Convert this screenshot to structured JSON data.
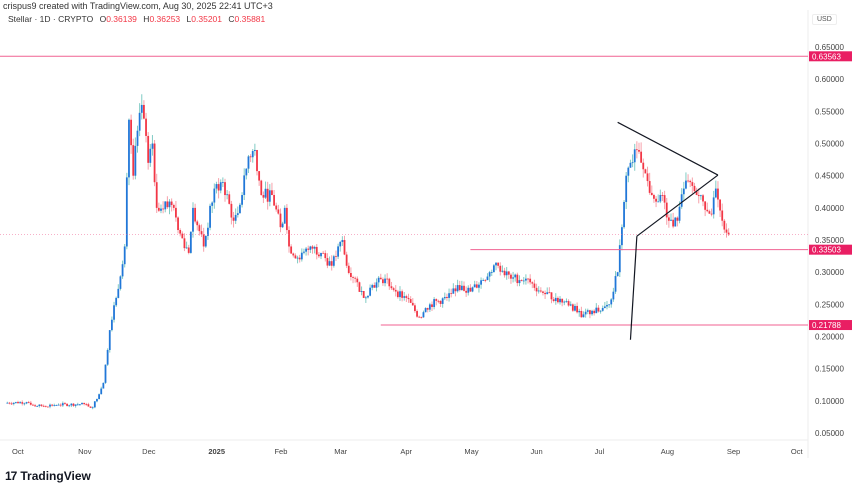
{
  "header": {
    "credit": "crispus9 created with TradingView.com, Aug 30, 2025 22:41 UTC+3",
    "symbol": "Stellar · 1D · CRYPTO",
    "ohlc": {
      "o_label": "O",
      "o": "0.36139",
      "h_label": "H",
      "h": "0.36253",
      "l_label": "L",
      "l": "0.35201",
      "c_label": "C",
      "c": "0.35881"
    }
  },
  "footer": {
    "brand": "TradingView",
    "brand_mark": "17"
  },
  "colors": {
    "up": "#2177d8",
    "up_wick": "#80cbc4",
    "down": "#f23645",
    "down_wick": "#f7a1aa",
    "level": "#f06292",
    "label_bg": "#e91e63",
    "trendline": "#131722"
  },
  "chart_data": {
    "type": "candlestick",
    "title": "Stellar · 1D · CRYPTO",
    "currency": "USD",
    "ylim": [
      0.02,
      0.68
    ],
    "y_ticks": [
      "0.65000",
      "0.60000",
      "0.55000",
      "0.50000",
      "0.45000",
      "0.40000",
      "0.35000",
      "0.30000",
      "0.25000",
      "0.20000",
      "0.15000",
      "0.10000",
      "0.05000"
    ],
    "x_ticks": [
      {
        "date": "2024-10-01",
        "label": "Oct"
      },
      {
        "date": "2024-11-01",
        "label": "Nov"
      },
      {
        "date": "2024-12-01",
        "label": "Dec"
      },
      {
        "date": "2025-01-01",
        "label": "2025",
        "bold": true
      },
      {
        "date": "2025-02-01",
        "label": "Feb"
      },
      {
        "date": "2025-03-01",
        "label": "Mar"
      },
      {
        "date": "2025-04-01",
        "label": "Apr"
      },
      {
        "date": "2025-05-01",
        "label": "May"
      },
      {
        "date": "2025-06-01",
        "label": "Jun"
      },
      {
        "date": "2025-07-01",
        "label": "Jul"
      },
      {
        "date": "2025-08-01",
        "label": "Aug"
      },
      {
        "date": "2025-09-01",
        "label": "Sep"
      },
      {
        "date": "2025-10-01",
        "label": "Oct"
      }
    ],
    "xlim": [
      "2024-09-24",
      "2025-10-13"
    ],
    "approx_closes": [
      [
        "2024-09-25",
        0.097
      ],
      [
        "2024-10-05",
        0.098
      ],
      [
        "2024-10-10",
        0.092
      ],
      [
        "2024-10-20",
        0.094
      ],
      [
        "2024-11-01",
        0.095
      ],
      [
        "2024-11-05",
        0.09
      ],
      [
        "2024-11-10",
        0.128
      ],
      [
        "2024-11-13",
        0.21
      ],
      [
        "2024-11-16",
        0.26
      ],
      [
        "2024-11-20",
        0.34
      ],
      [
        "2024-11-22",
        0.537
      ],
      [
        "2024-11-24",
        0.45
      ],
      [
        "2024-11-26",
        0.52
      ],
      [
        "2024-11-28",
        0.56
      ],
      [
        "2024-12-01",
        0.47
      ],
      [
        "2024-12-03",
        0.5
      ],
      [
        "2024-12-05",
        0.4
      ],
      [
        "2024-12-09",
        0.41
      ],
      [
        "2024-12-13",
        0.4
      ],
      [
        "2024-12-16",
        0.36
      ],
      [
        "2024-12-20",
        0.33
      ],
      [
        "2024-12-22",
        0.4
      ],
      [
        "2024-12-27",
        0.34
      ],
      [
        "2025-01-01",
        0.43
      ],
      [
        "2025-01-05",
        0.44
      ],
      [
        "2025-01-10",
        0.38
      ],
      [
        "2025-01-14",
        0.42
      ],
      [
        "2025-01-17",
        0.48
      ],
      [
        "2025-01-20",
        0.49
      ],
      [
        "2025-01-23",
        0.42
      ],
      [
        "2025-01-28",
        0.42
      ],
      [
        "2025-02-01",
        0.37
      ],
      [
        "2025-02-03",
        0.4
      ],
      [
        "2025-02-05",
        0.34
      ],
      [
        "2025-02-10",
        0.32
      ],
      [
        "2025-02-15",
        0.34
      ],
      [
        "2025-02-20",
        0.33
      ],
      [
        "2025-02-25",
        0.31
      ],
      [
        "2025-03-02",
        0.35
      ],
      [
        "2025-03-04",
        0.31
      ],
      [
        "2025-03-08",
        0.29
      ],
      [
        "2025-03-12",
        0.26
      ],
      [
        "2025-03-16",
        0.28
      ],
      [
        "2025-03-22",
        0.29
      ],
      [
        "2025-03-27",
        0.27
      ],
      [
        "2025-04-01",
        0.26
      ],
      [
        "2025-04-07",
        0.23
      ],
      [
        "2025-04-12",
        0.25
      ],
      [
        "2025-04-20",
        0.26
      ],
      [
        "2025-04-25",
        0.28
      ],
      [
        "2025-05-01",
        0.27
      ],
      [
        "2025-05-10",
        0.3
      ],
      [
        "2025-05-14",
        0.31
      ],
      [
        "2025-05-20",
        0.29
      ],
      [
        "2025-05-27",
        0.29
      ],
      [
        "2025-06-03",
        0.27
      ],
      [
        "2025-06-10",
        0.26
      ],
      [
        "2025-06-17",
        0.25
      ],
      [
        "2025-06-22",
        0.23
      ],
      [
        "2025-06-27",
        0.24
      ],
      [
        "2025-07-01",
        0.24
      ],
      [
        "2025-07-05",
        0.25
      ],
      [
        "2025-07-09",
        0.3
      ],
      [
        "2025-07-11",
        0.37
      ],
      [
        "2025-07-13",
        0.45
      ],
      [
        "2025-07-15",
        0.47
      ],
      [
        "2025-07-18",
        0.49
      ],
      [
        "2025-07-21",
        0.46
      ],
      [
        "2025-07-25",
        0.42
      ],
      [
        "2025-07-29",
        0.42
      ],
      [
        "2025-08-02",
        0.38
      ],
      [
        "2025-08-06",
        0.38
      ],
      [
        "2025-08-09",
        0.43
      ],
      [
        "2025-08-12",
        0.44
      ],
      [
        "2025-08-15",
        0.42
      ],
      [
        "2025-08-18",
        0.41
      ],
      [
        "2025-08-22",
        0.39
      ],
      [
        "2025-08-24",
        0.43
      ],
      [
        "2025-08-27",
        0.38
      ],
      [
        "2025-08-30",
        0.35881
      ]
    ],
    "levels": [
      {
        "price": 0.63563,
        "label": "0.63563",
        "from": null
      },
      {
        "price": 0.33503,
        "label": "0.33503",
        "from": "2025-05-01"
      },
      {
        "price": 0.21788,
        "label": "0.21788",
        "from": "2025-03-20"
      }
    ],
    "last_price": 0.35881,
    "trendlines": [
      [
        [
          "2025-07-09",
          0.533
        ],
        [
          "2025-08-25",
          0.451
        ]
      ],
      [
        [
          "2025-07-18",
          0.356
        ],
        [
          "2025-08-25",
          0.451
        ]
      ],
      [
        [
          "2025-07-15",
          0.195
        ],
        [
          "2025-07-18",
          0.356
        ]
      ]
    ]
  }
}
